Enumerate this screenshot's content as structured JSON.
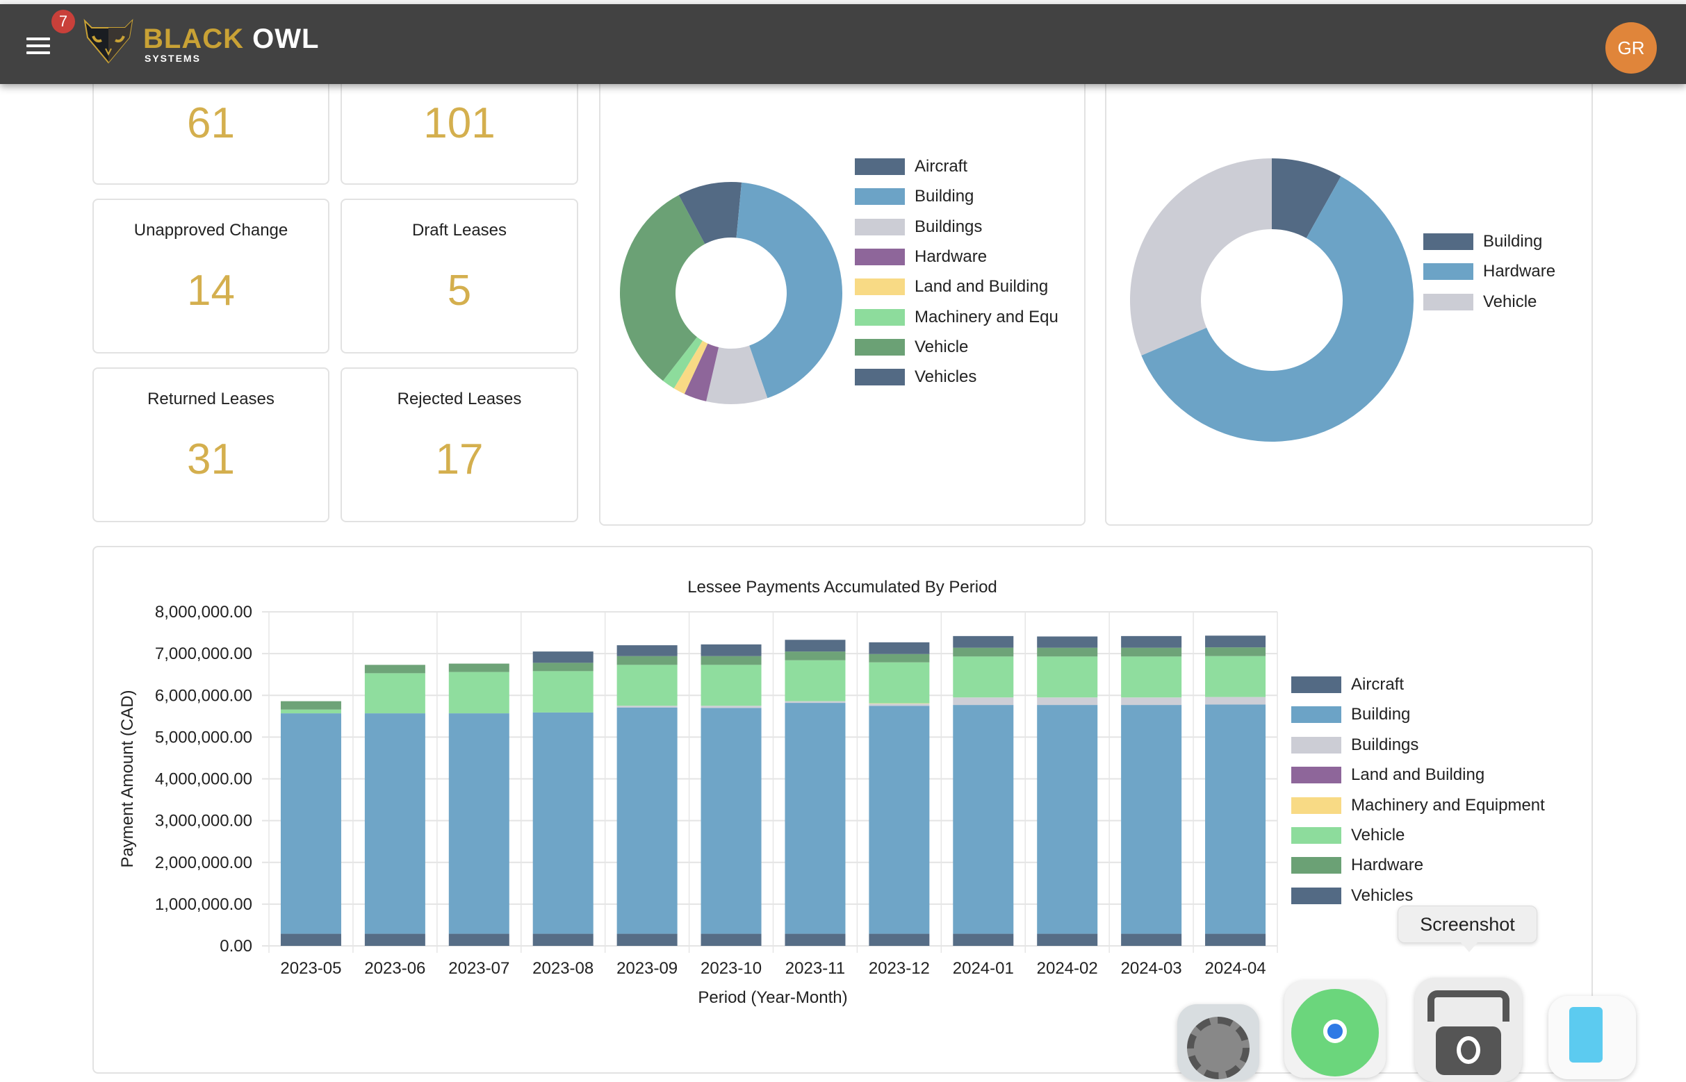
{
  "header": {
    "notification_count": "7",
    "logo_main_1": "BLACK",
    "logo_main_2": "OWL",
    "logo_sub": "SYSTEMS",
    "avatar_initials": "GR"
  },
  "kpis": [
    {
      "label": "",
      "value": "61"
    },
    {
      "label": "",
      "value": "101"
    },
    {
      "label": "Unapproved Change",
      "value": "14"
    },
    {
      "label": "Draft Leases",
      "value": "5"
    },
    {
      "label": "Returned Leases",
      "value": "31"
    },
    {
      "label": "Rejected Leases",
      "value": "17"
    }
  ],
  "colors": {
    "dark": "#536a84",
    "blue": "#6ca3c6",
    "gray": "#cccdd5",
    "purple": "#8e669a",
    "yellow": "#f8da85",
    "lightgreen": "#8ddc9c",
    "green": "#6ba175"
  },
  "tooltip": "Screenshot",
  "chart_data": [
    {
      "type": "pie",
      "variant": "doughnut",
      "unit": "percent",
      "labels": [
        "Aircraft",
        "Building",
        "Buildings",
        "Hardware",
        "Land and Building",
        "Machinery and Equ",
        "Vehicle",
        "Vehicles"
      ],
      "values": [
        1.5,
        43.2,
        8.9,
        3.3,
        1.7,
        1.9,
        31.7,
        7.8
      ],
      "colors": [
        "#536a84",
        "#6ca3c6",
        "#cccdd5",
        "#8e669a",
        "#f8da85",
        "#8ddc9c",
        "#6ba175",
        "#536a84"
      ],
      "legend": "right"
    },
    {
      "type": "pie",
      "variant": "doughnut",
      "unit": "percent",
      "labels": [
        "Building",
        "Hardware",
        "Vehicle"
      ],
      "values": [
        8.1,
        60.5,
        31.4
      ],
      "colors": [
        "#536a84",
        "#6ca3c6",
        "#cccdd5"
      ],
      "legend": "right"
    },
    {
      "type": "bar",
      "stacked": true,
      "title": "Lessee Payments Accumulated By Period",
      "xlabel": "Period (Year-Month)",
      "ylabel": "Payment Amount (CAD)",
      "ylim": [
        0,
        8000000
      ],
      "yticks": [
        "0.00",
        "1,000,000.00",
        "2,000,000.00",
        "3,000,000.00",
        "4,000,000.00",
        "5,000,000.00",
        "6,000,000.00",
        "7,000,000.00",
        "8,000,000.00"
      ],
      "categories": [
        "2023-05",
        "2023-06",
        "2023-07",
        "2023-08",
        "2023-09",
        "2023-10",
        "2023-11",
        "2023-12",
        "2024-01",
        "2024-02",
        "2024-03",
        "2024-04"
      ],
      "legend": "right",
      "series": [
        {
          "name": "Aircraft",
          "color": "#536a84",
          "values": [
            290000,
            290000,
            290000,
            290000,
            290000,
            290000,
            290000,
            290000,
            290000,
            290000,
            290000,
            290000
          ]
        },
        {
          "name": "Building",
          "color": "#6ca3c6",
          "values": [
            5280000,
            5280000,
            5280000,
            5300000,
            5420000,
            5410000,
            5530000,
            5460000,
            5480000,
            5480000,
            5480000,
            5490000
          ]
        },
        {
          "name": "Buildings",
          "color": "#cccdd5",
          "values": [
            0,
            0,
            0,
            0,
            40000,
            50000,
            40000,
            50000,
            180000,
            180000,
            180000,
            180000
          ]
        },
        {
          "name": "Land and Building",
          "color": "#8e669a",
          "values": [
            0,
            0,
            0,
            0,
            0,
            0,
            0,
            0,
            0,
            0,
            0,
            0
          ]
        },
        {
          "name": "Machinery and Equipment",
          "color": "#f8da85",
          "values": [
            0,
            0,
            0,
            0,
            0,
            0,
            0,
            10000,
            0,
            0,
            0,
            0
          ]
        },
        {
          "name": "Vehicle",
          "color": "#8ddc9c",
          "values": [
            90000,
            960000,
            990000,
            990000,
            980000,
            980000,
            980000,
            980000,
            980000,
            980000,
            980000,
            980000
          ]
        },
        {
          "name": "Hardware",
          "color": "#6ba175",
          "values": [
            200000,
            200000,
            200000,
            200000,
            210000,
            210000,
            210000,
            200000,
            210000,
            210000,
            210000,
            210000
          ]
        },
        {
          "name": "Vehicles",
          "color": "#536a84",
          "values": [
            0,
            0,
            0,
            270000,
            260000,
            280000,
            280000,
            280000,
            280000,
            270000,
            280000,
            280000
          ]
        }
      ]
    }
  ]
}
